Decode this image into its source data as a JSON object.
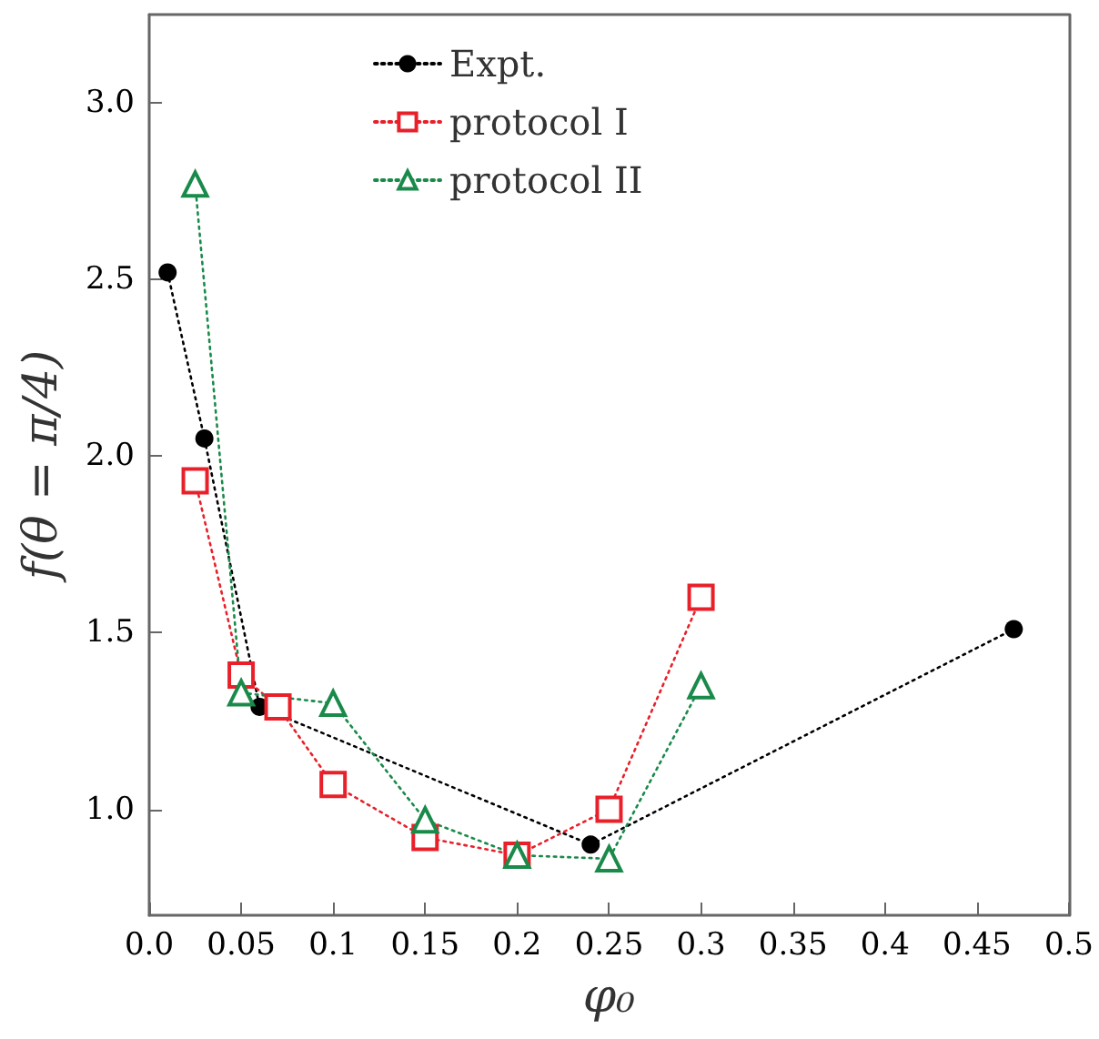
{
  "chart_data": {
    "type": "line",
    "xlabel": "φ₀",
    "ylabel": "f(θ = π/4)",
    "xlim": [
      0,
      0.5
    ],
    "xticks": [
      {
        "value": 0,
        "label": "0.0"
      },
      0.05,
      0.1,
      0.15,
      0.2,
      0.25,
      0.3,
      0.35,
      0.4,
      0.45,
      0.5
    ],
    "ylim": [
      0.7,
      3.25
    ],
    "yticks": [
      {
        "value": 1,
        "label": "1.0"
      },
      1.5,
      {
        "value": 2,
        "label": "2.0"
      },
      2.5,
      {
        "value": 3,
        "label": "3.0"
      }
    ],
    "grid": false,
    "legend": "top",
    "line_style": "dotted",
    "series": [
      {
        "name": "Expt.",
        "color": "#000000",
        "marker": "circle",
        "x": [
          0.01,
          0.03,
          0.06,
          0.24,
          0.47
        ],
        "values": [
          2.52,
          2.05,
          1.29,
          0.9,
          1.51
        ]
      },
      {
        "name": "protocol I",
        "color": "#e8202a",
        "marker": "square",
        "x": [
          0.025,
          0.05,
          0.07,
          0.1,
          0.15,
          0.2,
          0.25,
          0.3
        ],
        "values": [
          1.93,
          1.38,
          1.29,
          1.07,
          0.92,
          0.87,
          1.0,
          1.6
        ]
      },
      {
        "name": "protocol II",
        "color": "#1a8a4a",
        "marker": "triangle",
        "x": [
          0.025,
          0.05,
          0.1,
          0.15,
          0.2,
          0.25,
          0.3
        ],
        "values": [
          2.77,
          1.33,
          1.3,
          0.97,
          0.87,
          0.86,
          1.35
        ]
      }
    ]
  }
}
